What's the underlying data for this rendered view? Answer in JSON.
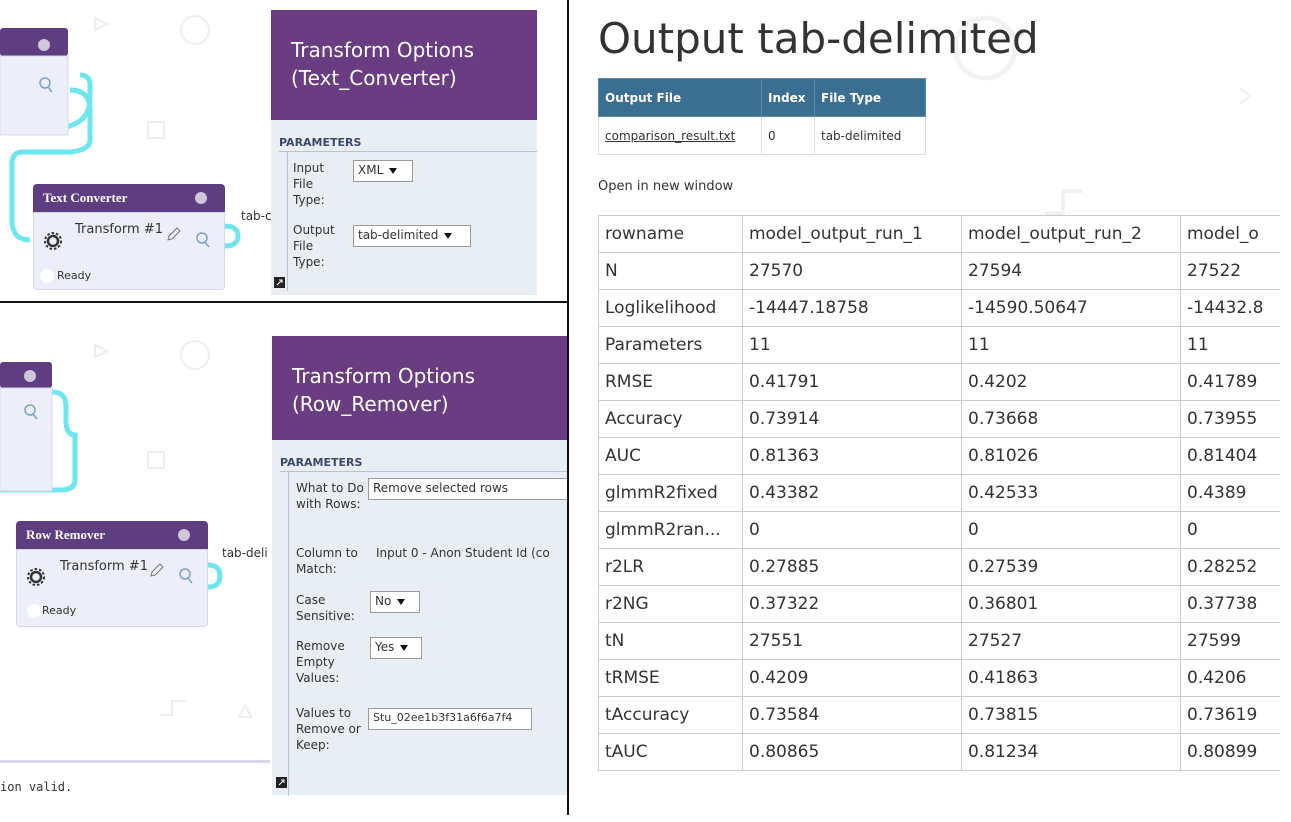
{
  "text_converter": {
    "node": {
      "title": "Text Converter",
      "transform": "Transform #1",
      "status": "Ready",
      "output_label": "tab-c"
    },
    "panel": {
      "title": "Transform Options (Text_Converter)",
      "section": "PARAMETERS",
      "params": [
        {
          "label": "Input File Type:",
          "value": "XML"
        },
        {
          "label": "Output File Type:",
          "value": "tab-delimited"
        }
      ]
    }
  },
  "row_remover": {
    "node": {
      "title": "Row Remover",
      "transform": "Transform #1",
      "status": "Ready",
      "output_label": "tab-deli"
    },
    "panel": {
      "title": "Transform Options (Row_Remover)",
      "section": "PARAMETERS",
      "params": [
        {
          "label": "What to Do with Rows:",
          "value": "Remove selected rows"
        },
        {
          "label": "Column to Match:",
          "value": "Input 0 - Anon Student Id (co"
        },
        {
          "label": "Case Sensitive:",
          "value": "No"
        },
        {
          "label": "Remove Empty Values:",
          "value": "Yes"
        },
        {
          "label": "Values to Remove or Keep:",
          "value": "Stu_02ee1b3f31a6f6a7f4"
        }
      ]
    },
    "status_bar": "ion valid."
  },
  "output": {
    "title": "Output tab-delimited",
    "files_table": {
      "header": [
        "Output File",
        "Index",
        "File Type"
      ],
      "rows": [
        [
          "comparison_result.txt",
          "0",
          "tab-delimited"
        ]
      ]
    },
    "open_link": "Open in new window",
    "results_table": {
      "header": [
        "rowname",
        "model_output_run_1",
        "model_output_run_2",
        "model_o"
      ],
      "rows": [
        [
          "N",
          "27570",
          "27594",
          "27522"
        ],
        [
          "Loglikelihood",
          "-14447.18758",
          "-14590.50647",
          "-14432.8"
        ],
        [
          "Parameters",
          "11",
          "11",
          "11"
        ],
        [
          "RMSE",
          "0.41791",
          "0.4202",
          "0.41789"
        ],
        [
          "Accuracy",
          "0.73914",
          "0.73668",
          "0.73955"
        ],
        [
          "AUC",
          "0.81363",
          "0.81026",
          "0.81404"
        ],
        [
          "glmmR2fixed",
          "0.43382",
          "0.42533",
          "0.4389"
        ],
        [
          "glmmR2ran...",
          "0",
          "0",
          "0"
        ],
        [
          "r2LR",
          "0.27885",
          "0.27539",
          "0.28252"
        ],
        [
          "r2NG",
          "0.37322",
          "0.36801",
          "0.37738"
        ],
        [
          "tN",
          "27551",
          "27527",
          "27599"
        ],
        [
          "tRMSE",
          "0.4209",
          "0.41863",
          "0.4206"
        ],
        [
          "tAccuracy",
          "0.73584",
          "0.73815",
          "0.73619"
        ],
        [
          "tAUC",
          "0.80865",
          "0.81234",
          "0.80899"
        ]
      ]
    }
  }
}
